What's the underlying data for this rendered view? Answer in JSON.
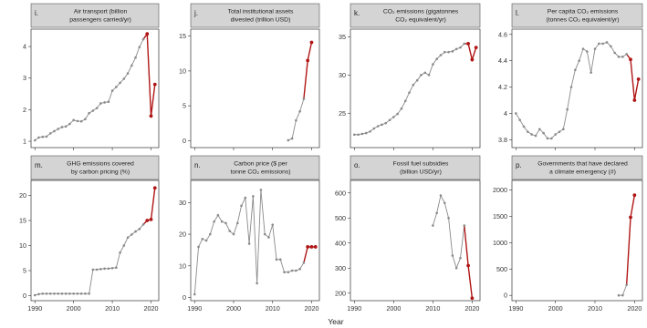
{
  "figure": {
    "xlabel": "Year",
    "x_ticks": [
      1990,
      2000,
      2010,
      2020
    ],
    "colors": {
      "pre_2019": "#8a8a8a",
      "from_2019": "#b01616",
      "strip": "#d4d4d4",
      "axis": "#333333"
    }
  },
  "chart_data": [
    {
      "type": "line",
      "letter": "i.",
      "title": [
        "Air transport (billion",
        "passengers carried/yr)"
      ],
      "xlim": [
        1989,
        2022
      ],
      "ylim": [
        0.8,
        4.55
      ],
      "yticks": [
        1,
        2,
        3,
        4
      ],
      "x": [
        1990,
        1991,
        1992,
        1993,
        1994,
        1995,
        1996,
        1997,
        1998,
        1999,
        2000,
        2001,
        2002,
        2003,
        2004,
        2005,
        2006,
        2007,
        2008,
        2009,
        2010,
        2011,
        2012,
        2013,
        2014,
        2015,
        2016,
        2017,
        2018,
        2019,
        2020,
        2021
      ],
      "values": [
        1.03,
        1.12,
        1.14,
        1.15,
        1.25,
        1.32,
        1.39,
        1.45,
        1.47,
        1.55,
        1.67,
        1.64,
        1.63,
        1.7,
        1.89,
        1.97,
        2.05,
        2.2,
        2.23,
        2.25,
        2.6,
        2.72,
        2.85,
        2.98,
        3.15,
        3.4,
        3.65,
        3.98,
        4.23,
        4.4,
        1.8,
        2.8
      ]
    },
    {
      "type": "line",
      "letter": "j.",
      "title": [
        "Total institutional assets",
        "divested (trillion USD)"
      ],
      "xlim": [
        1989,
        2022
      ],
      "ylim": [
        -1,
        16
      ],
      "yticks": [
        0,
        5,
        10,
        15
      ],
      "x": [
        2014,
        2015,
        2016,
        2017,
        2018,
        2019,
        2020
      ],
      "values": [
        0.05,
        0.3,
        2.9,
        4.2,
        6.0,
        11.5,
        14.1
      ]
    },
    {
      "type": "line",
      "letter": "k.",
      "title": [
        "CO₂ emissions (gigatonnes",
        "CO₂ equivalent/yr)"
      ],
      "xlim": [
        1989,
        2022
      ],
      "ylim": [
        20.5,
        36
      ],
      "yticks": [
        25,
        30,
        35
      ],
      "x": [
        1990,
        1991,
        1992,
        1993,
        1994,
        1995,
        1996,
        1997,
        1998,
        1999,
        2000,
        2001,
        2002,
        2003,
        2004,
        2005,
        2006,
        2007,
        2008,
        2009,
        2010,
        2011,
        2012,
        2013,
        2014,
        2015,
        2016,
        2017,
        2018,
        2019,
        2020,
        2021
      ],
      "values": [
        22.2,
        22.2,
        22.3,
        22.4,
        22.6,
        23.0,
        23.3,
        23.5,
        23.7,
        24.1,
        24.5,
        24.9,
        25.6,
        26.6,
        27.7,
        28.7,
        29.3,
        30.0,
        30.3,
        30.0,
        31.4,
        32.1,
        32.6,
        33.0,
        33.0,
        33.1,
        33.4,
        33.6,
        34.1,
        34.1,
        32.0,
        33.6
      ]
    },
    {
      "type": "line",
      "letter": "l.",
      "title": [
        "Per capita CO₂ emissions",
        "(tonnes CO₂ equivalent/yr)"
      ],
      "xlim": [
        1989,
        2022
      ],
      "ylim": [
        3.74,
        4.64
      ],
      "yticks": [
        3.8,
        4.0,
        4.2,
        4.4,
        4.6
      ],
      "x": [
        1990,
        1991,
        1992,
        1993,
        1994,
        1995,
        1996,
        1997,
        1998,
        1999,
        2000,
        2001,
        2002,
        2003,
        2004,
        2005,
        2006,
        2007,
        2008,
        2009,
        2010,
        2011,
        2012,
        2013,
        2014,
        2015,
        2016,
        2017,
        2018,
        2019,
        2020,
        2021
      ],
      "values": [
        4.0,
        3.95,
        3.9,
        3.86,
        3.84,
        3.83,
        3.88,
        3.85,
        3.81,
        3.81,
        3.84,
        3.86,
        3.88,
        4.03,
        4.2,
        4.33,
        4.4,
        4.49,
        4.47,
        4.31,
        4.49,
        4.53,
        4.53,
        4.54,
        4.51,
        4.46,
        4.43,
        4.43,
        4.45,
        4.41,
        4.1,
        4.26
      ]
    },
    {
      "type": "line",
      "letter": "m.",
      "title": [
        "GHG emissions covered",
        "by carbon pricing (%)"
      ],
      "xlim": [
        1989,
        2022
      ],
      "ylim": [
        -1,
        23
      ],
      "yticks": [
        0,
        5,
        10,
        15,
        20
      ],
      "x": [
        1990,
        1991,
        1992,
        1993,
        1994,
        1995,
        1996,
        1997,
        1998,
        1999,
        2000,
        2001,
        2002,
        2003,
        2004,
        2005,
        2006,
        2007,
        2008,
        2009,
        2010,
        2011,
        2012,
        2013,
        2014,
        2015,
        2016,
        2017,
        2018,
        2019,
        2020,
        2021
      ],
      "values": [
        0.1,
        0.3,
        0.4,
        0.4,
        0.4,
        0.4,
        0.4,
        0.4,
        0.4,
        0.4,
        0.4,
        0.4,
        0.4,
        0.4,
        0.4,
        5.2,
        5.2,
        5.3,
        5.4,
        5.4,
        5.5,
        5.6,
        8.6,
        10.0,
        11.6,
        12.2,
        12.8,
        13.3,
        14.2,
        15.0,
        15.2,
        21.5
      ]
    },
    {
      "type": "line",
      "letter": "n.",
      "title": [
        "Carbon price ($ per",
        "tonne CO₂ emissions)"
      ],
      "xlim": [
        1989,
        2022
      ],
      "ylim": [
        -1,
        37
      ],
      "yticks": [
        0,
        10,
        20,
        30
      ],
      "x": [
        1990,
        1991,
        1992,
        1993,
        1994,
        1995,
        1996,
        1997,
        1998,
        1999,
        2000,
        2001,
        2002,
        2003,
        2004,
        2005,
        2006,
        2007,
        2008,
        2009,
        2010,
        2011,
        2012,
        2013,
        2014,
        2015,
        2016,
        2017,
        2018,
        2019,
        2020,
        2021
      ],
      "values": [
        1.0,
        16.0,
        18.5,
        18.0,
        20.0,
        24.0,
        26.0,
        24.0,
        23.5,
        21.0,
        20.0,
        23.5,
        29.0,
        31.5,
        17.0,
        32.0,
        4.5,
        34.0,
        20.0,
        19.0,
        23.0,
        12.0,
        12.0,
        8.0,
        8.0,
        8.5,
        8.5,
        9.0,
        11.0,
        16.0,
        16.0,
        16.0
      ]
    },
    {
      "type": "line",
      "letter": "o.",
      "title": [
        "Fossil fuel subsidies",
        "(billion USD/yr)"
      ],
      "xlim": [
        1989,
        2022
      ],
      "ylim": [
        170,
        650
      ],
      "yticks": [
        200,
        300,
        400,
        500,
        600
      ],
      "x": [
        2010,
        2011,
        2012,
        2013,
        2014,
        2015,
        2016,
        2017,
        2018,
        2019,
        2020
      ],
      "values": [
        470,
        520,
        590,
        560,
        500,
        350,
        300,
        340,
        470,
        310,
        180
      ]
    },
    {
      "type": "line",
      "letter": "p.",
      "title": [
        "Governments that have declared",
        "a climate emergency (#)"
      ],
      "xlim": [
        1989,
        2022
      ],
      "ylim": [
        -100,
        2180
      ],
      "yticks": [
        0,
        500,
        1000,
        1500,
        2000
      ],
      "x": [
        2016,
        2017,
        2018,
        2019,
        2020
      ],
      "values": [
        0,
        2,
        200,
        1480,
        1900
      ]
    }
  ]
}
